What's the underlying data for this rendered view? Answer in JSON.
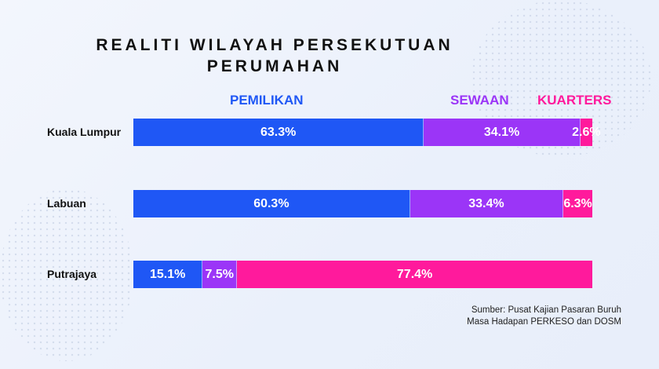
{
  "chart_data": {
    "type": "bar",
    "orientation": "horizontal-stacked-100",
    "title_lines": [
      "REALITI WILAYAH PERSEKUTUAN",
      "PERUMAHAN"
    ],
    "categories": [
      "Kuala Lumpur",
      "Labuan",
      "Putrajaya"
    ],
    "series": [
      {
        "name": "PEMILIKAN",
        "color": "#1f57f5",
        "values": [
          63.3,
          60.3,
          15.1
        ],
        "labels": [
          "63.3%",
          "60.3%",
          "15.1%"
        ]
      },
      {
        "name": "SEWAAN",
        "color": "#9b35f7",
        "values": [
          34.1,
          33.4,
          7.5
        ],
        "labels": [
          "34.1%",
          "33.4%",
          "7.5%"
        ]
      },
      {
        "name": "KUARTERS",
        "color": "#ff1a9c",
        "values": [
          2.6,
          6.3,
          77.4
        ],
        "labels": [
          "2.6%",
          "6.3%",
          "77.4%"
        ]
      }
    ],
    "xlim": [
      0,
      100
    ],
    "legend": "top",
    "grid": false
  },
  "source_lines": [
    "Sumber: Pusat Kajian Pasaran Buruh",
    "Masa Hadapan PERKESO dan DOSM"
  ]
}
